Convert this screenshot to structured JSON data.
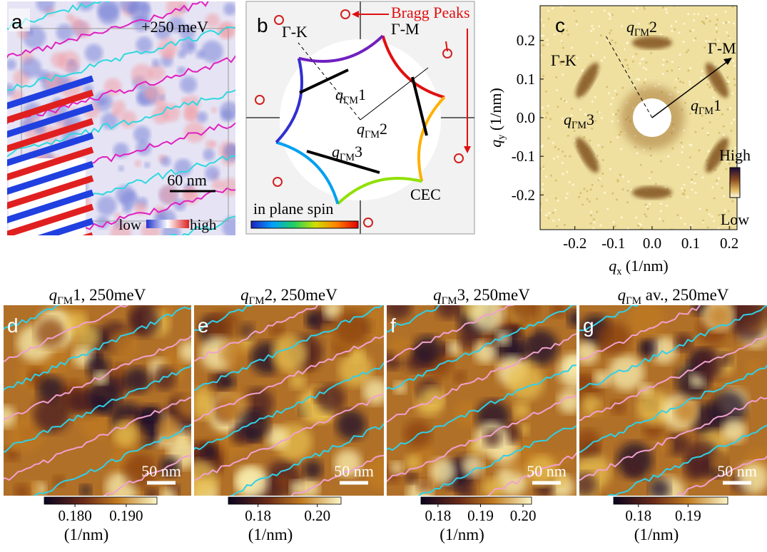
{
  "panels": {
    "a": {
      "label": "a",
      "energy": "+250 meV",
      "scale_bar": "60 nm",
      "colorbar_low": "low",
      "colorbar_high": "high"
    },
    "b": {
      "label": "b",
      "gamma_k": "Γ-K",
      "gamma_m": "Γ-M",
      "bragg_peaks": "Bragg Peaks",
      "q1": {
        "q": "q",
        "sub": "ΓM",
        "rest": "1"
      },
      "q2": {
        "q": "q",
        "sub": "ΓM",
        "rest": "2"
      },
      "q3": {
        "q": "q",
        "sub": "ΓM",
        "rest": "3"
      },
      "cec": "CEC",
      "spin_bar": "in plane spin"
    },
    "c": {
      "label": "c",
      "gamma_k": "Γ-K",
      "gamma_m": "Γ-M",
      "q1": {
        "q": "q",
        "sub": "ΓM",
        "rest": "1"
      },
      "q2": {
        "q": "q",
        "sub": "ΓM",
        "rest": "2"
      },
      "q3": {
        "q": "q",
        "sub": "ΓM",
        "rest": "3"
      },
      "colorbar_high": "High",
      "colorbar_low": "Low",
      "x_label": {
        "q": "q",
        "sub": "x",
        "rest": " (1/nm)"
      },
      "y_label": {
        "q": "q",
        "sub": "y",
        "rest": " (1/nm)"
      },
      "xlim": [
        -0.29,
        0.22
      ],
      "ylim": [
        -0.29,
        0.29
      ],
      "xticks": [
        -0.2,
        -0.1,
        {
          "value": 0,
          "label": "0.0"
        },
        0.1,
        0.2
      ],
      "yticks": [
        -0.2,
        -0.1,
        {
          "value": 0,
          "label": "0.0"
        },
        0.1,
        0.2
      ]
    },
    "maps": [
      {
        "label": "d",
        "title": {
          "q": "q",
          "sub": "ΓM",
          "rest": "1, 250meV"
        },
        "scale_bar": "50 nm",
        "colorbar": {
          "lim": [
            0.174,
            0.196
          ],
          "ticks": [
            {
              "value": 0.18,
              "label": "0.180"
            },
            {
              "value": 0.19,
              "label": "0.190"
            }
          ],
          "unit": "(1/nm)"
        }
      },
      {
        "label": "e",
        "title": {
          "q": "q",
          "sub": "ΓM",
          "rest": "2, 250meV"
        },
        "scale_bar": "50 nm",
        "colorbar": {
          "lim": [
            0.17,
            0.208
          ],
          "ticks": [
            0.18,
            {
              "value": 0.2,
              "label": "0.20"
            }
          ],
          "unit": "(1/nm)"
        }
      },
      {
        "label": "f",
        "title": {
          "q": "q",
          "sub": "ΓM",
          "rest": "3, 250meV"
        },
        "scale_bar": "50 nm",
        "colorbar": {
          "lim": [
            0.176,
            0.202
          ],
          "ticks": [
            0.18,
            0.19,
            {
              "value": 0.2,
              "label": "0.20"
            }
          ],
          "unit": "(1/nm)"
        }
      },
      {
        "label": "g",
        "title": {
          "q": "q",
          "sub": "ΓM",
          "rest": " av., 250meV"
        },
        "scale_bar": "50 nm",
        "colorbar": {
          "lim": [
            0.175,
            0.198
          ],
          "ticks": [
            0.18,
            0.19
          ],
          "unit": "(1/nm)"
        }
      }
    ]
  }
}
